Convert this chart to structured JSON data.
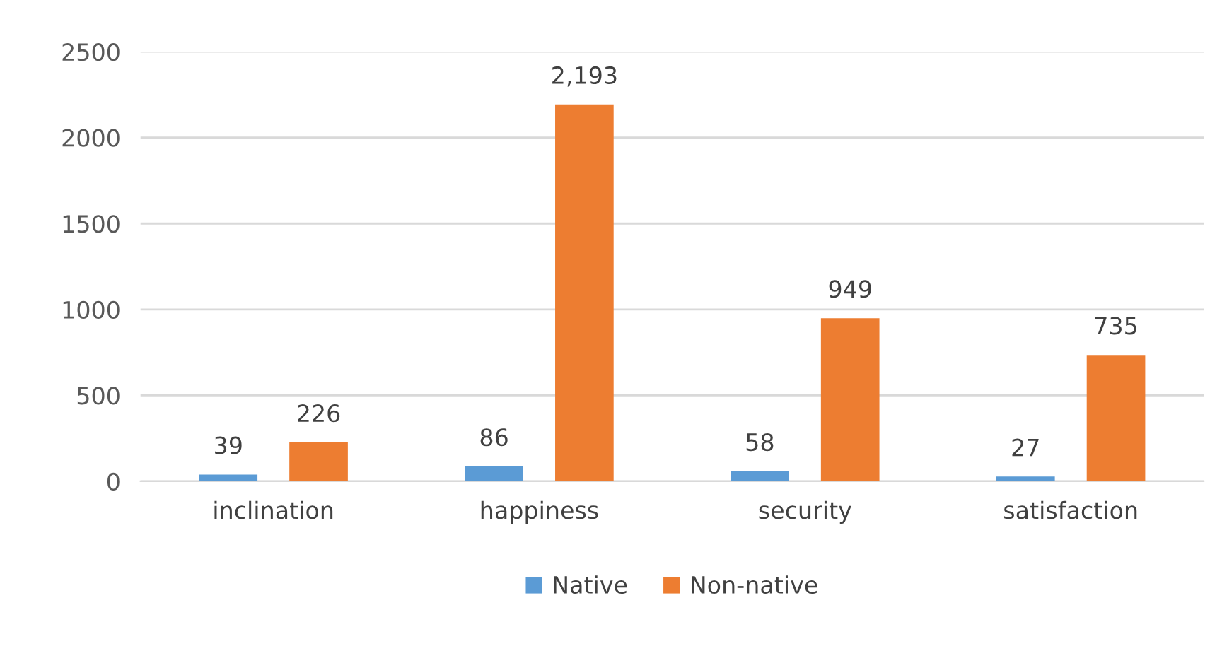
{
  "chart_data": {
    "type": "bar",
    "categories": [
      "inclination",
      "happiness",
      "security",
      "satisfaction"
    ],
    "series": [
      {
        "name": "Native",
        "color": "#5b9bd5",
        "values": [
          39,
          86,
          58,
          27
        ],
        "value_labels": [
          "39",
          "86",
          "58",
          "27"
        ]
      },
      {
        "name": "Non-native",
        "color": "#ed7d31",
        "values": [
          226,
          2193,
          949,
          735
        ],
        "value_labels": [
          "226",
          "2,193",
          "949",
          "735"
        ]
      }
    ],
    "ylim": [
      0,
      2500
    ],
    "yticks": [
      0,
      500,
      1000,
      1500,
      2000,
      2500
    ],
    "grid": "y",
    "legend": "bottom"
  }
}
